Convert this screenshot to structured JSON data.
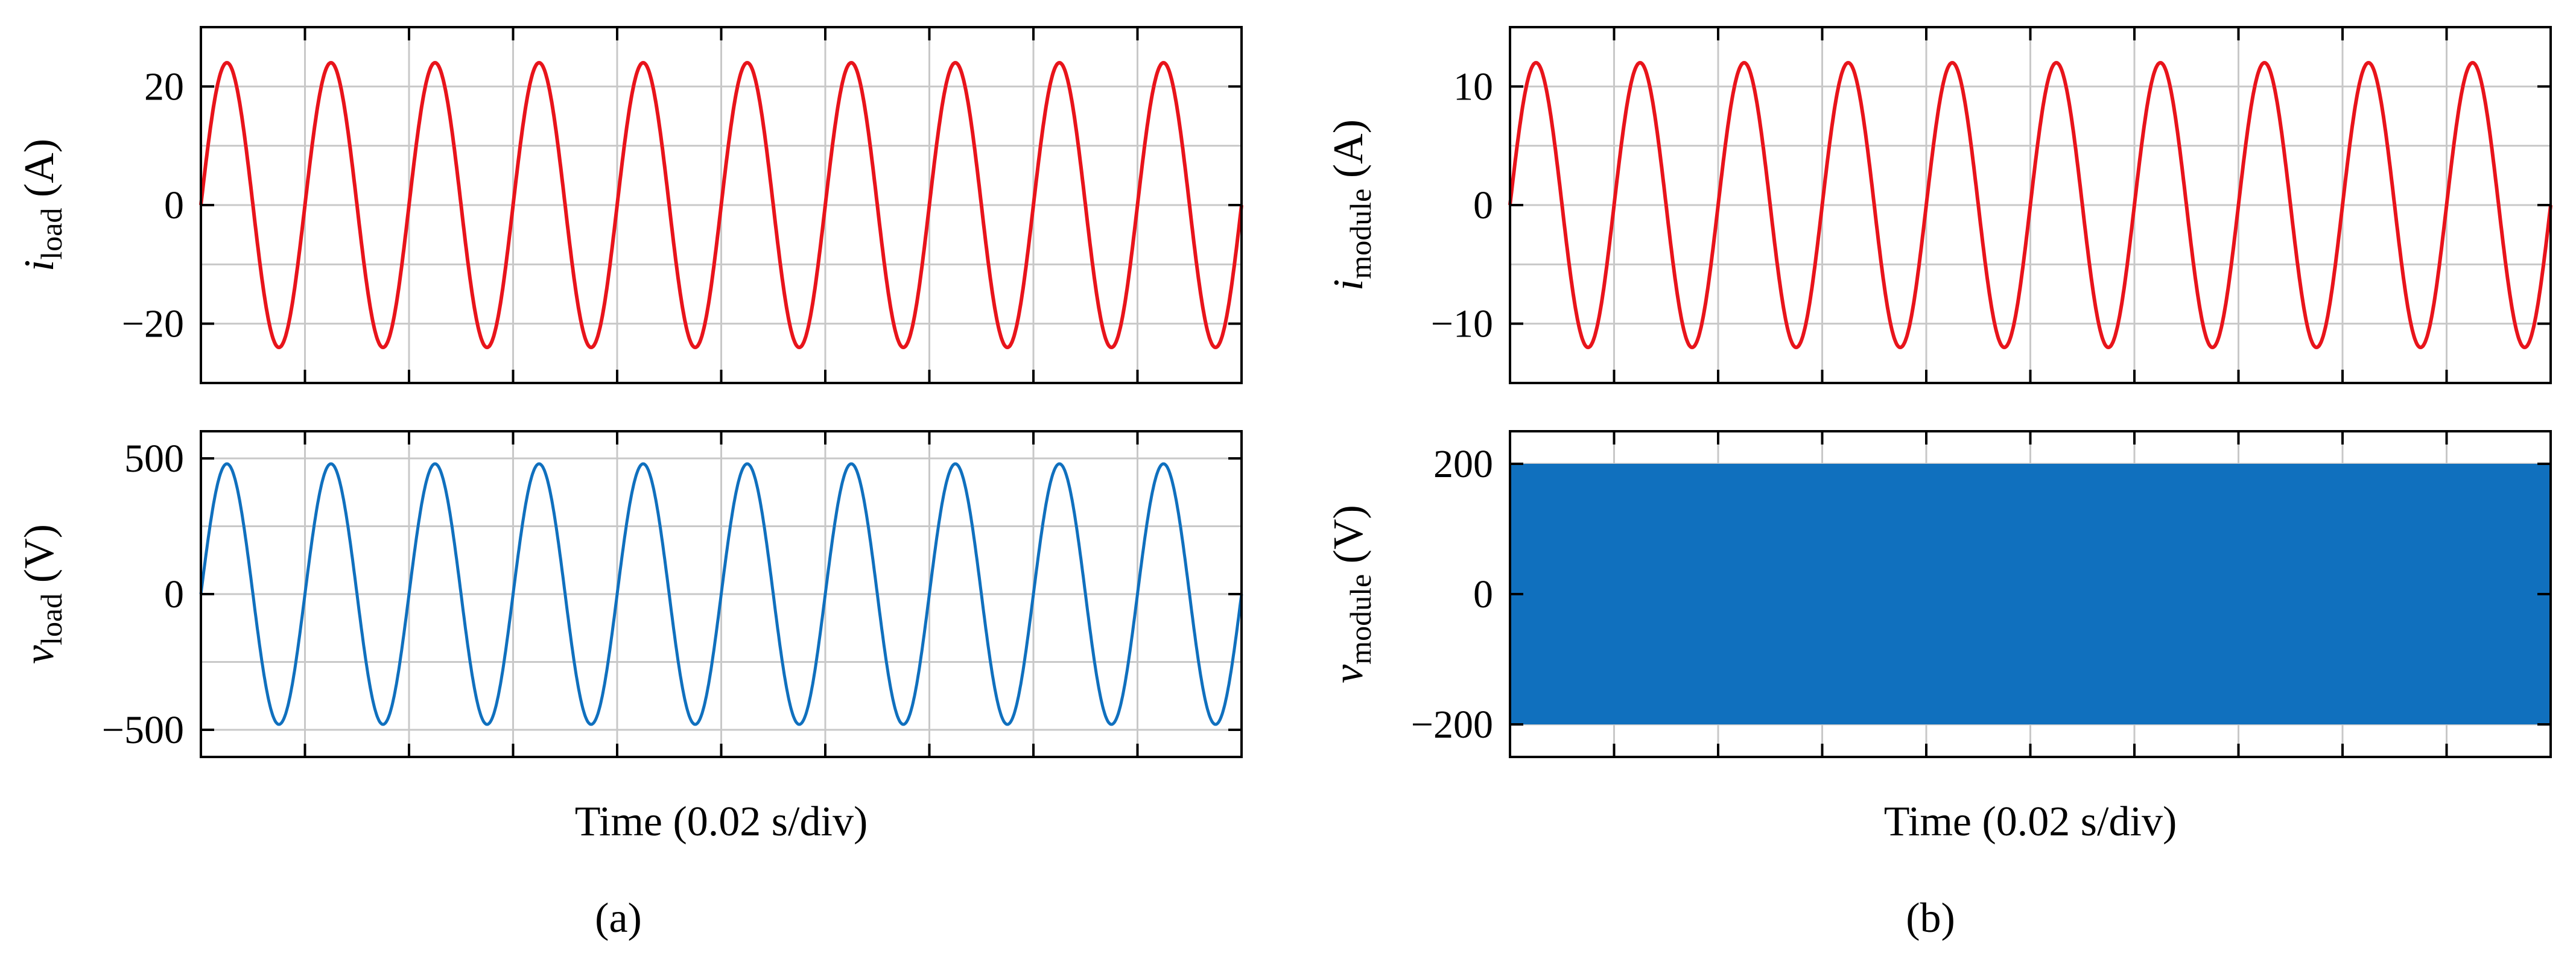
{
  "colors": {
    "current": "#e8141b",
    "voltage": "#1070be"
  },
  "chart_data": [
    {
      "type": "line",
      "panel": "a-top",
      "ylabel_main": "i",
      "ylabel_sub": "load",
      "ylabel_unit": " (A)",
      "yticks": [
        "20",
        "0",
        "−20"
      ],
      "ytick_values": [
        20,
        0,
        -20
      ],
      "ylim": [
        -30,
        30
      ],
      "series": [
        {
          "color": "#e8141b",
          "amplitude": 24,
          "periods": 10,
          "waveform": "sine"
        }
      ]
    },
    {
      "type": "line",
      "panel": "a-bottom",
      "ylabel_main": "v",
      "ylabel_sub": "load",
      "ylabel_unit": " (V)",
      "yticks": [
        "500",
        "0",
        "−500"
      ],
      "ytick_values": [
        500,
        0,
        -500
      ],
      "ylim": [
        -600,
        600
      ],
      "xlabel": "Time (0.02 s/div)",
      "series": [
        {
          "color": "#1070be",
          "amplitude": 480,
          "periods": 10,
          "waveform": "sine"
        }
      ]
    },
    {
      "type": "line",
      "panel": "b-top",
      "ylabel_main": "i",
      "ylabel_sub": "module",
      "ylabel_unit": " (A)",
      "yticks": [
        "10",
        "0",
        "−10"
      ],
      "ytick_values": [
        10,
        0,
        -10
      ],
      "ylim": [
        -15,
        15
      ],
      "series": [
        {
          "color": "#e8141b",
          "amplitude": 12,
          "periods": 10,
          "waveform": "sine"
        }
      ]
    },
    {
      "type": "area",
      "panel": "b-bottom",
      "ylabel_main": "v",
      "ylabel_sub": "module",
      "ylabel_unit": " (V)",
      "yticks": [
        "200",
        "0",
        "−200"
      ],
      "ytick_values": [
        200,
        0,
        -200
      ],
      "ylim": [
        -250,
        250
      ],
      "xlabel": "Time (0.02 s/div)",
      "series": [
        {
          "color": "#1070be",
          "amplitude": 200,
          "waveform": "pwm"
        }
      ]
    }
  ],
  "captions": {
    "a": "(a)",
    "b": "(b)"
  }
}
